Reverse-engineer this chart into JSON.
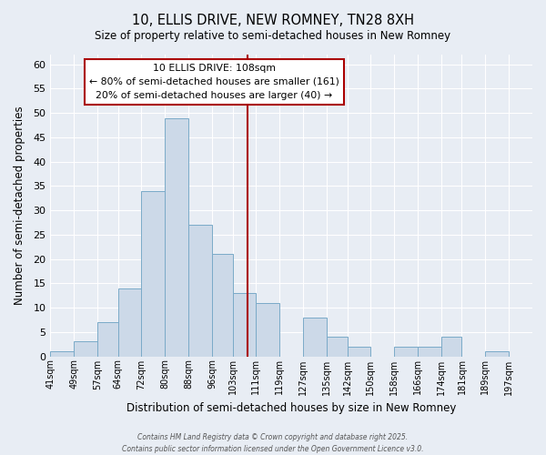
{
  "title": "10, ELLIS DRIVE, NEW ROMNEY, TN28 8XH",
  "subtitle": "Size of property relative to semi-detached houses in New Romney",
  "xlabel": "Distribution of semi-detached houses by size in New Romney",
  "ylabel": "Number of semi-detached properties",
  "bin_labels": [
    "41sqm",
    "49sqm",
    "57sqm",
    "64sqm",
    "72sqm",
    "80sqm",
    "88sqm",
    "96sqm",
    "103sqm",
    "111sqm",
    "119sqm",
    "127sqm",
    "135sqm",
    "142sqm",
    "150sqm",
    "158sqm",
    "166sqm",
    "174sqm",
    "181sqm",
    "189sqm",
    "197sqm"
  ],
  "bin_edges": [
    41,
    49,
    57,
    64,
    72,
    80,
    88,
    96,
    103,
    111,
    119,
    127,
    135,
    142,
    150,
    158,
    166,
    174,
    181,
    189,
    197,
    205
  ],
  "counts": [
    1,
    3,
    7,
    14,
    34,
    49,
    27,
    21,
    13,
    11,
    0,
    8,
    4,
    2,
    0,
    2,
    2,
    4,
    0,
    1,
    0
  ],
  "bar_color": "#ccd9e8",
  "bar_edge_color": "#7aaac8",
  "property_value": 108,
  "vline_color": "#aa0000",
  "annotation_line1": "10 ELLIS DRIVE: 108sqm",
  "annotation_line2": "← 80% of semi-detached houses are smaller (161)",
  "annotation_line3": "20% of semi-detached houses are larger (40) →",
  "annotation_box_color": "#ffffff",
  "annotation_border_color": "#aa0000",
  "ylim": [
    0,
    62
  ],
  "yticks": [
    0,
    5,
    10,
    15,
    20,
    25,
    30,
    35,
    40,
    45,
    50,
    55,
    60
  ],
  "bg_color": "#e8edf4",
  "grid_color": "#ffffff",
  "footer_line1": "Contains HM Land Registry data © Crown copyright and database right 2025.",
  "footer_line2": "Contains public sector information licensed under the Open Government Licence v3.0."
}
